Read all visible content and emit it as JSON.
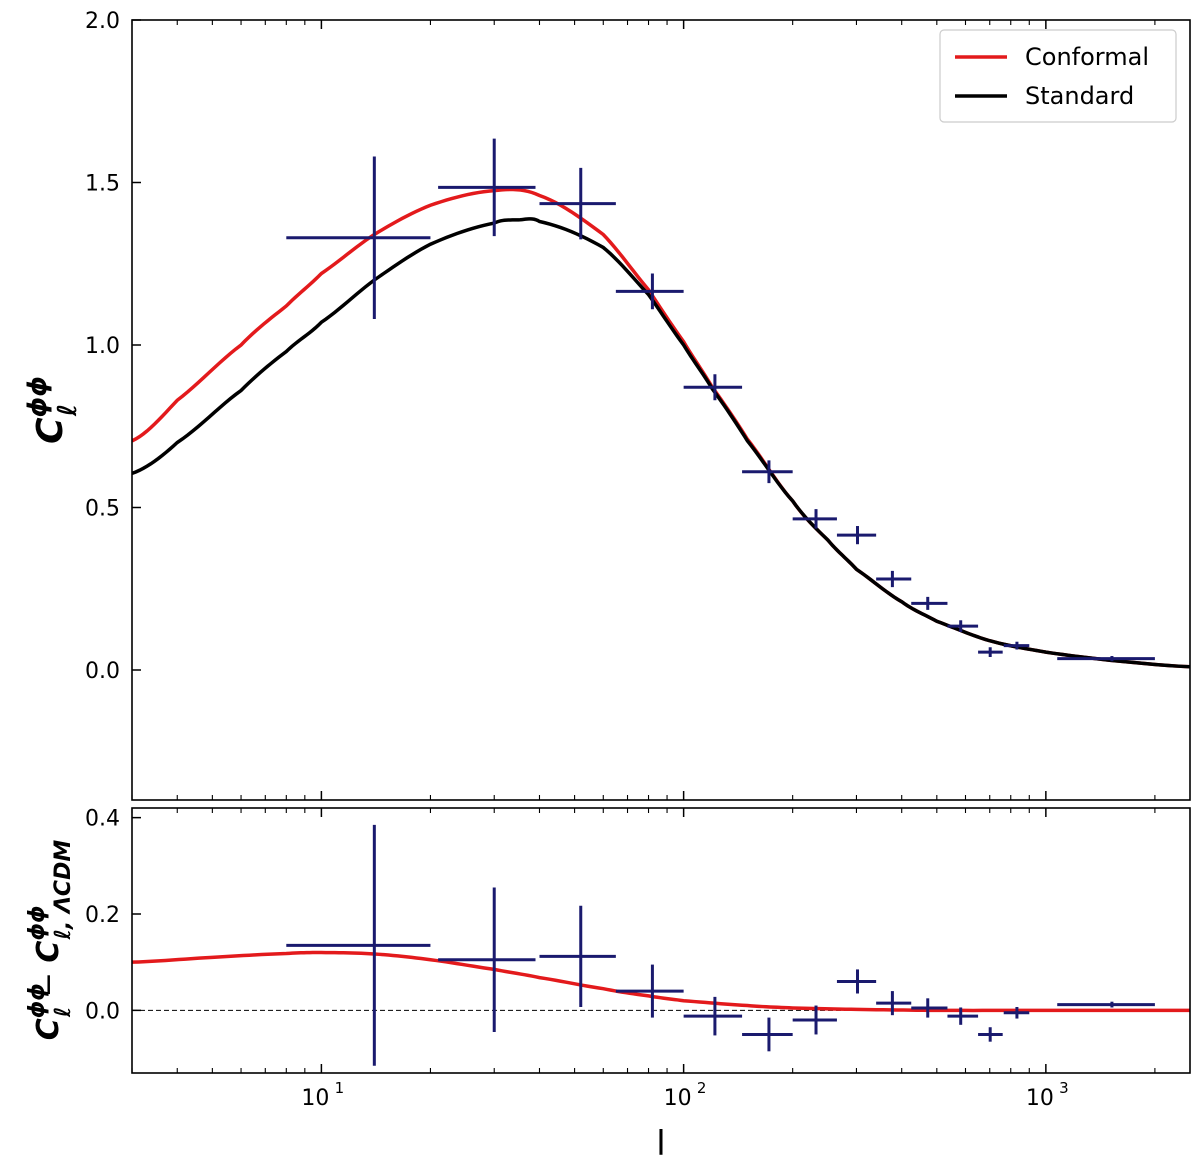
{
  "chart_data": [
    {
      "type": "line",
      "panel": "top",
      "xscale": "log",
      "xlim": [
        3,
        2500
      ],
      "ylim": [
        -0.4,
        2.0
      ],
      "yticks": [
        0.0,
        0.5,
        1.0,
        1.5,
        2.0
      ],
      "ytick_labels": [
        "0.0",
        "0.5",
        "1.0",
        "1.5",
        "2.0"
      ],
      "ylabel": "C_ℓ^{ϕϕ}",
      "ylabel_main": "C",
      "ylabel_sup": "ϕϕ",
      "ylabel_sub": "ℓ",
      "legend": {
        "location": "top-right",
        "entries": [
          "Conformal",
          "Standard"
        ]
      },
      "colors": {
        "Conformal": "#e31a1c",
        "Standard": "#000000",
        "data": "#1a1a6e"
      },
      "series": [
        {
          "name": "Conformal",
          "x": [
            3,
            4,
            6,
            8,
            10,
            14,
            20,
            30,
            40,
            60,
            80,
            100,
            120,
            150,
            200,
            250,
            300,
            400,
            500,
            700,
            1000,
            1500,
            2500
          ],
          "y": [
            0.705,
            0.83,
            1.0,
            1.12,
            1.22,
            1.34,
            1.43,
            1.475,
            1.46,
            1.34,
            1.17,
            1.01,
            0.87,
            0.71,
            0.52,
            0.4,
            0.31,
            0.21,
            0.15,
            0.09,
            0.055,
            0.03,
            0.01
          ]
        },
        {
          "name": "Standard",
          "x": [
            3,
            4,
            6,
            8,
            10,
            14,
            20,
            30,
            35,
            40,
            60,
            80,
            100,
            120,
            150,
            200,
            250,
            300,
            400,
            500,
            700,
            1000,
            1500,
            2500
          ],
          "y": [
            0.605,
            0.7,
            0.86,
            0.98,
            1.07,
            1.2,
            1.31,
            1.375,
            1.385,
            1.38,
            1.3,
            1.155,
            1.0,
            0.865,
            0.705,
            0.52,
            0.4,
            0.31,
            0.21,
            0.15,
            0.09,
            0.055,
            0.03,
            0.01
          ]
        }
      ],
      "errorbars": {
        "x": [
          14,
          30,
          52,
          82,
          122,
          172,
          232,
          302,
          377,
          472,
          582,
          702,
          832,
          1522
        ],
        "xlow": [
          8,
          21,
          40,
          65,
          100,
          145,
          200,
          265,
          340,
          425,
          535,
          650,
          765,
          1075
        ],
        "xhigh": [
          20,
          39,
          65,
          100,
          145,
          200,
          265,
          340,
          425,
          535,
          650,
          760,
          900,
          2000
        ],
        "y": [
          1.33,
          1.485,
          1.435,
          1.165,
          0.87,
          0.61,
          0.465,
          0.415,
          0.28,
          0.205,
          0.135,
          0.055,
          0.075,
          0.035
        ],
        "yerr": [
          0.25,
          0.15,
          0.11,
          0.055,
          0.04,
          0.035,
          0.03,
          0.028,
          0.025,
          0.02,
          0.018,
          0.015,
          0.012,
          0.008
        ]
      }
    },
    {
      "type": "line",
      "panel": "bottom",
      "xscale": "log",
      "xlim": [
        3,
        2500
      ],
      "ylim": [
        -0.13,
        0.42
      ],
      "yticks": [
        0.0,
        0.2,
        0.4
      ],
      "ytick_labels": [
        "0.0",
        "0.2",
        "0.4"
      ],
      "xticks": [
        10,
        100,
        1000
      ],
      "xtick_labels": [
        "10",
        "10",
        "10"
      ],
      "xtick_exponents": [
        "1",
        "2",
        "3"
      ],
      "xlabel": "l",
      "ylabel": "C_ℓ^{ϕϕ} − C_{ℓ,ΛCDM}^{ϕϕ}",
      "ylabel_main": "C",
      "ylabel_sup": "ϕϕ",
      "ylabel_sub": "ℓ",
      "ylabel_minus": " − ",
      "ylabel_sub2": "ℓ, ΛCDM",
      "reference_line": 0.0,
      "colors": {
        "Conformal": "#e31a1c",
        "data": "#1a1a6e"
      },
      "series": [
        {
          "name": "Conformal",
          "x": [
            3,
            5,
            8,
            10,
            14,
            20,
            30,
            40,
            60,
            80,
            100,
            150,
            200,
            300,
            500,
            1000,
            2500
          ],
          "y": [
            0.1,
            0.11,
            0.118,
            0.12,
            0.117,
            0.105,
            0.085,
            0.068,
            0.045,
            0.03,
            0.02,
            0.01,
            0.005,
            0.002,
            0.0,
            0.0,
            0.0
          ]
        }
      ],
      "errorbars": {
        "x": [
          14,
          30,
          52,
          82,
          122,
          172,
          232,
          302,
          377,
          472,
          582,
          702,
          832,
          1522
        ],
        "xlow": [
          8,
          21,
          40,
          65,
          100,
          145,
          200,
          265,
          340,
          425,
          535,
          650,
          765,
          1075
        ],
        "xhigh": [
          20,
          39,
          65,
          100,
          145,
          200,
          265,
          340,
          425,
          535,
          650,
          760,
          900,
          2000
        ],
        "y": [
          0.135,
          0.105,
          0.112,
          0.04,
          -0.012,
          -0.05,
          -0.02,
          0.06,
          0.015,
          0.005,
          -0.012,
          -0.05,
          -0.005,
          0.012
        ],
        "yerr": [
          0.25,
          0.15,
          0.105,
          0.055,
          0.04,
          0.035,
          0.03,
          0.025,
          0.025,
          0.02,
          0.018,
          0.015,
          0.012,
          0.006
        ]
      }
    }
  ]
}
